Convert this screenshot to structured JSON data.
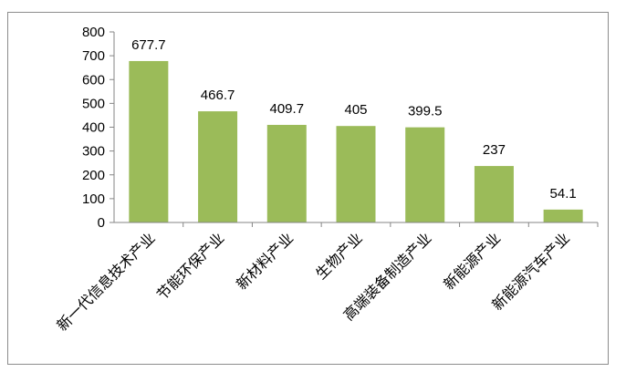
{
  "chart_data": {
    "type": "bar",
    "categories": [
      "新一代信息技术产业",
      "节能环保产业",
      "新材料产业",
      "生物产业",
      "高端装备制造产业",
      "新能源产业",
      "新能源汽车产业"
    ],
    "values": [
      677.7,
      466.7,
      409.7,
      405,
      399.5,
      237,
      54.1
    ],
    "data_labels": [
      "677.7",
      "466.7",
      "409.7",
      "405",
      "399.5",
      "237",
      "54.1"
    ],
    "y_ticks": [
      "0",
      "100",
      "200",
      "300",
      "400",
      "500",
      "600",
      "700",
      "800"
    ],
    "ylim": [
      0,
      800
    ],
    "grid": false,
    "legend": "none",
    "title": "",
    "xlabel": "",
    "ylabel": "",
    "colors": {
      "bar": "#9bbb59",
      "axis": "#868686",
      "frame": "#8c8c8c"
    }
  }
}
